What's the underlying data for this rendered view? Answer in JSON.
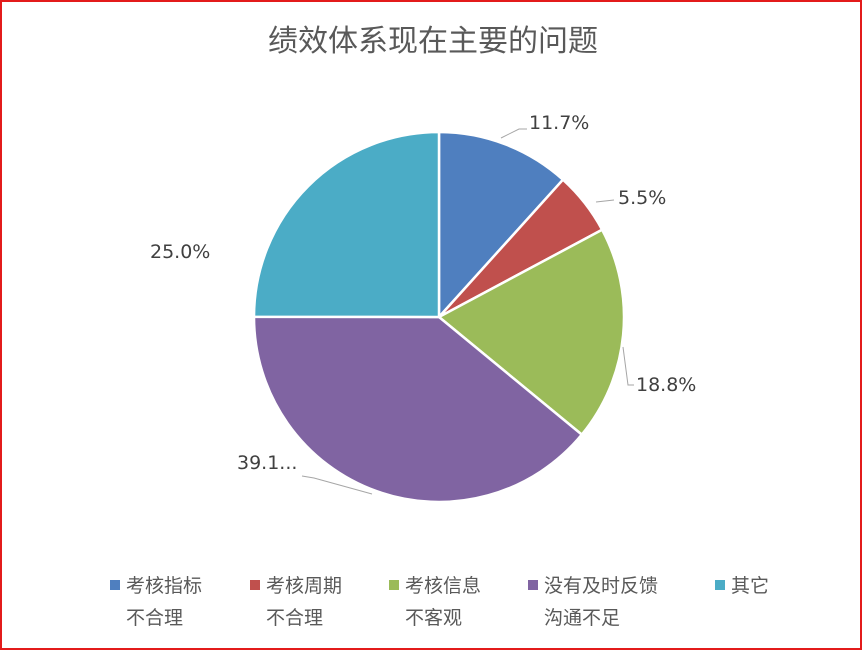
{
  "chart_data": {
    "type": "pie",
    "title": "绩效体系现在主要的问题",
    "slices": [
      {
        "label": "考核指标\n不合理",
        "value": 11.7,
        "data_label": "11.7%",
        "color": "#4f7fbf"
      },
      {
        "label": "考核周期\n不合理",
        "value": 5.5,
        "data_label": "5.5%",
        "color": "#c0504d"
      },
      {
        "label": "考核信息\n不客观",
        "value": 18.8,
        "data_label": "18.8%",
        "color": "#9bbb59"
      },
      {
        "label": "没有及时反馈\n沟通不足",
        "value": 39.1,
        "data_label": "39.1...",
        "color": "#8064a2"
      },
      {
        "label": "其它",
        "value": 25.0,
        "data_label": "25.0%",
        "color": "#4bacc6"
      }
    ],
    "legend_position": "bottom"
  }
}
